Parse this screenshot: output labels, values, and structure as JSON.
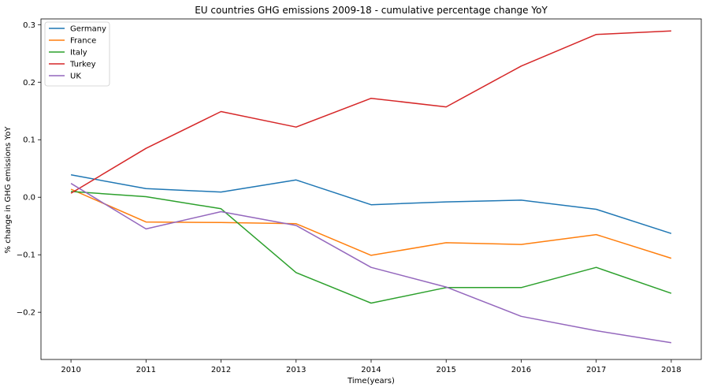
{
  "chart_data": {
    "type": "line",
    "title": "EU countries GHG emissions 2009-18 - cumulative percentage change YoY",
    "xlabel": "Time(years)",
    "ylabel": "% change in GHG emissions YoY",
    "x": [
      2010,
      2011,
      2012,
      2013,
      2014,
      2015,
      2016,
      2017,
      2018
    ],
    "x_ticks": [
      "2010",
      "2011",
      "2012",
      "2013",
      "2014",
      "2015",
      "2016",
      "2017",
      "2018"
    ],
    "y_ticks": [
      "0.3",
      "0.2",
      "0.1",
      "0.0",
      "−0.1",
      "−0.2"
    ],
    "y_tick_values": [
      0.3,
      0.2,
      0.1,
      0.0,
      -0.1,
      -0.2
    ],
    "xlim": [
      2009.6,
      2018.4
    ],
    "ylim": [
      -0.282,
      0.31
    ],
    "grid": false,
    "legend_position": "top-left",
    "series": [
      {
        "name": "Germany",
        "color": "#1f77b4",
        "values": [
          0.039,
          0.015,
          0.009,
          0.03,
          -0.013,
          -0.008,
          -0.005,
          -0.021,
          -0.063
        ]
      },
      {
        "name": "France",
        "color": "#ff7f0e",
        "values": [
          0.014,
          -0.043,
          -0.044,
          -0.046,
          -0.101,
          -0.079,
          -0.082,
          -0.065,
          -0.106
        ]
      },
      {
        "name": "Italy",
        "color": "#2ca02c",
        "values": [
          0.01,
          0.001,
          -0.02,
          -0.131,
          -0.184,
          -0.157,
          -0.157,
          -0.122,
          -0.167
        ]
      },
      {
        "name": "Turkey",
        "color": "#d62728",
        "values": [
          0.007,
          0.085,
          0.149,
          0.122,
          0.172,
          0.157,
          0.228,
          0.283,
          0.289
        ]
      },
      {
        "name": "UK",
        "color": "#9467bd",
        "values": [
          0.024,
          -0.055,
          -0.025,
          -0.049,
          -0.122,
          -0.156,
          -0.207,
          -0.232,
          -0.253
        ]
      }
    ]
  }
}
